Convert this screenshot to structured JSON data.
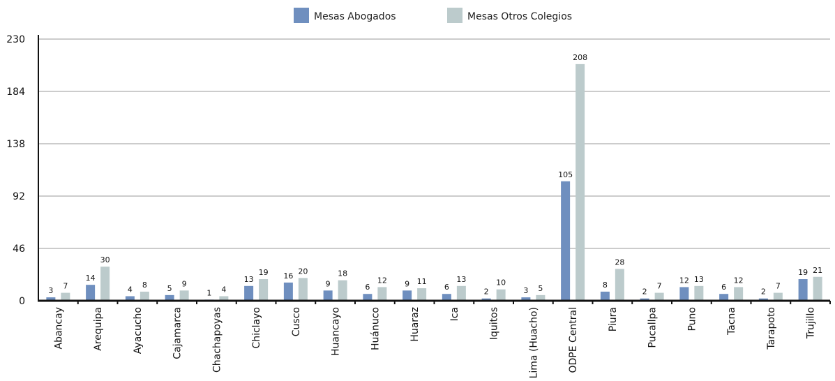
{
  "chart_data": {
    "type": "bar",
    "categories": [
      "Abancay",
      "Arequipa",
      "Ayacucho",
      "Cajamarca",
      "Chachapoyas",
      "Chiclayo",
      "Cusco",
      "Huancayo",
      "Huánuco",
      "Huaraz",
      "Ica",
      "Iquitos",
      "Lima (Huacho)",
      "ODPE Central",
      "Piura",
      "Pucallpa",
      "Puno",
      "Tacna",
      "Tarapoto",
      "Trujillo"
    ],
    "series": [
      {
        "name": "Mesas Abogados",
        "color": "#6f8fbf",
        "values": [
          3,
          14,
          4,
          5,
          1,
          13,
          16,
          9,
          6,
          9,
          6,
          2,
          3,
          105,
          8,
          2,
          12,
          6,
          2,
          19
        ]
      },
      {
        "name": "Mesas Otros Colegios",
        "color": "#bccbcc",
        "values": [
          7,
          30,
          8,
          9,
          4,
          19,
          20,
          18,
          12,
          11,
          13,
          10,
          5,
          208,
          28,
          7,
          13,
          12,
          7,
          21
        ]
      }
    ],
    "yticks": [
      0,
      46,
      92,
      138,
      184,
      230
    ],
    "ylim": [
      0,
      230
    ],
    "grid": true,
    "legend_position": "top-center"
  }
}
